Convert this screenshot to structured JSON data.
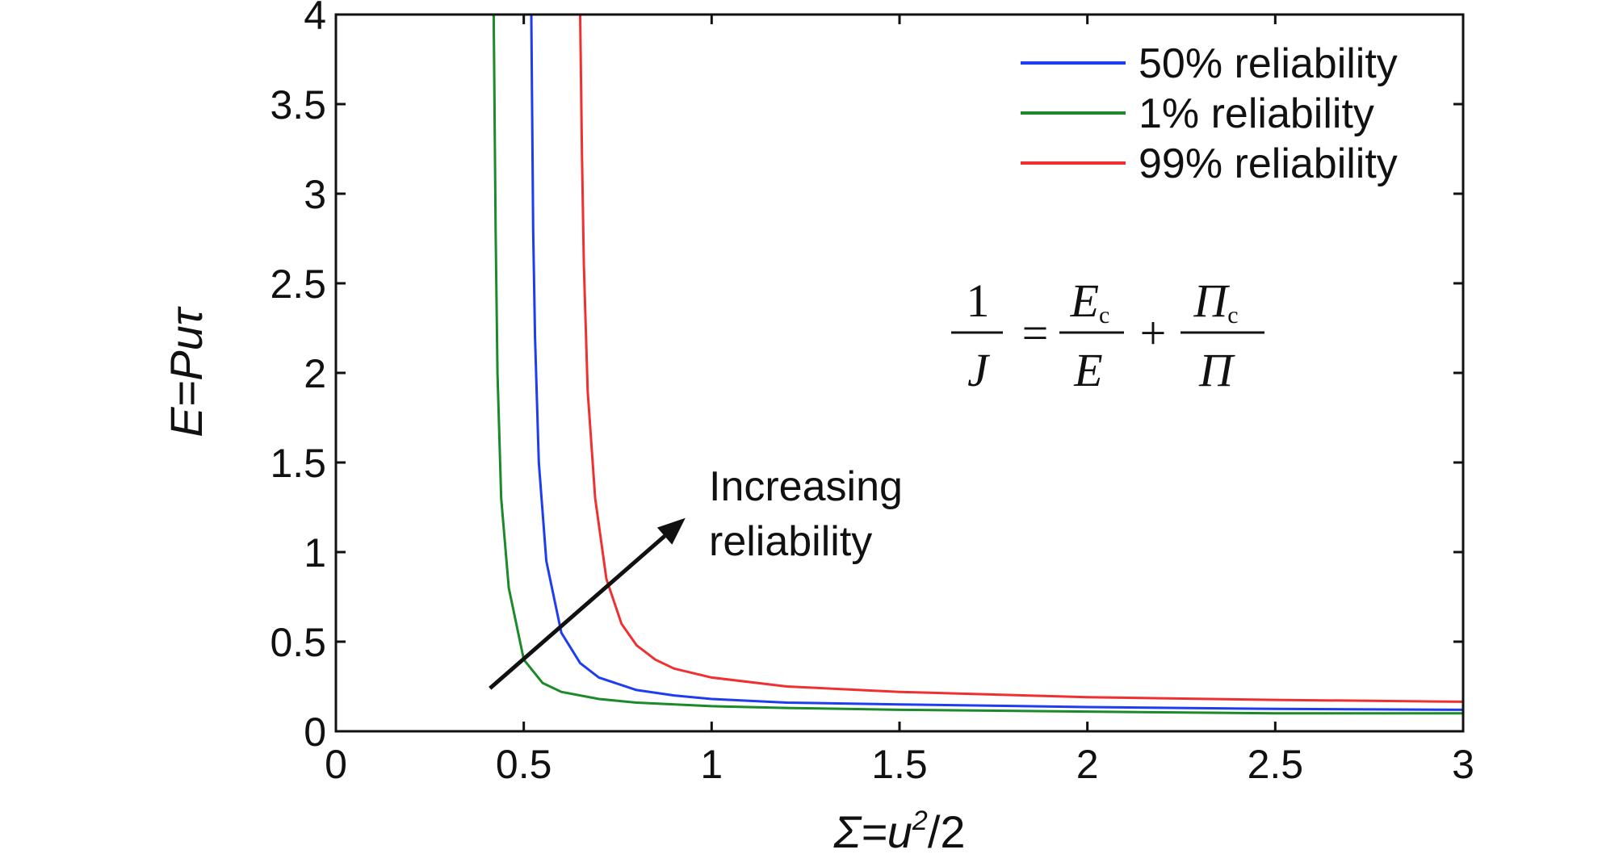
{
  "chart_data": {
    "type": "line",
    "xlabel": {
      "var": "Σ",
      "mid": "=u",
      "sup": "2",
      "rest": "/2"
    },
    "ylabel": "E=Puτ",
    "xlim": [
      0,
      3
    ],
    "ylim": [
      0,
      4
    ],
    "xticks": [
      0,
      0.5,
      1,
      1.5,
      2,
      2.5,
      3
    ],
    "xtick_labels": [
      "0",
      "0.5",
      "1",
      "1.5",
      "2",
      "2.5",
      "3"
    ],
    "yticks": [
      0,
      0.5,
      1,
      1.5,
      2,
      2.5,
      3,
      3.5,
      4
    ],
    "ytick_labels": [
      "0",
      "0.5",
      "1",
      "1.5",
      "2",
      "2.5",
      "3",
      "3.5",
      "4"
    ],
    "grid": false,
    "legend_position": "top-right",
    "series": [
      {
        "name": "50% reliability",
        "color": "#1f3df0",
        "x": [
          0.52,
          0.525,
          0.53,
          0.54,
          0.56,
          0.6,
          0.65,
          0.7,
          0.8,
          0.9,
          1.0,
          1.2,
          1.5,
          2.0,
          2.5,
          3.0
        ],
        "y": [
          4.0,
          2.8,
          2.2,
          1.5,
          0.95,
          0.55,
          0.38,
          0.3,
          0.23,
          0.2,
          0.18,
          0.16,
          0.15,
          0.135,
          0.125,
          0.12
        ]
      },
      {
        "name": "1% reliability",
        "color": "#1a8a2a",
        "x": [
          0.42,
          0.425,
          0.43,
          0.44,
          0.46,
          0.5,
          0.55,
          0.6,
          0.7,
          0.8,
          1.0,
          1.2,
          1.5,
          2.0,
          2.5,
          3.0
        ],
        "y": [
          4.0,
          2.8,
          2.0,
          1.3,
          0.8,
          0.4,
          0.27,
          0.22,
          0.18,
          0.16,
          0.14,
          0.13,
          0.12,
          0.11,
          0.1,
          0.1
        ]
      },
      {
        "name": "99% reliability",
        "color": "#f03030",
        "x": [
          0.65,
          0.655,
          0.66,
          0.67,
          0.69,
          0.72,
          0.76,
          0.8,
          0.85,
          0.9,
          1.0,
          1.2,
          1.5,
          2.0,
          2.5,
          3.0
        ],
        "y": [
          4.0,
          3.2,
          2.6,
          1.9,
          1.3,
          0.85,
          0.6,
          0.48,
          0.4,
          0.35,
          0.3,
          0.25,
          0.22,
          0.19,
          0.175,
          0.165
        ]
      }
    ],
    "annotations": [
      {
        "text_lines": [
          "Increasing",
          "reliability"
        ],
        "arrow_from": [
          0.41,
          0.24
        ],
        "arrow_to": [
          0.93,
          1.19
        ]
      }
    ],
    "equation": {
      "one": "1",
      "J": "J",
      "eq": "=",
      "Ec": "E",
      "c1": "c",
      "E": "E",
      "plus": "+",
      "Pc": "Π",
      "c2": "c",
      "P": "Π"
    }
  }
}
